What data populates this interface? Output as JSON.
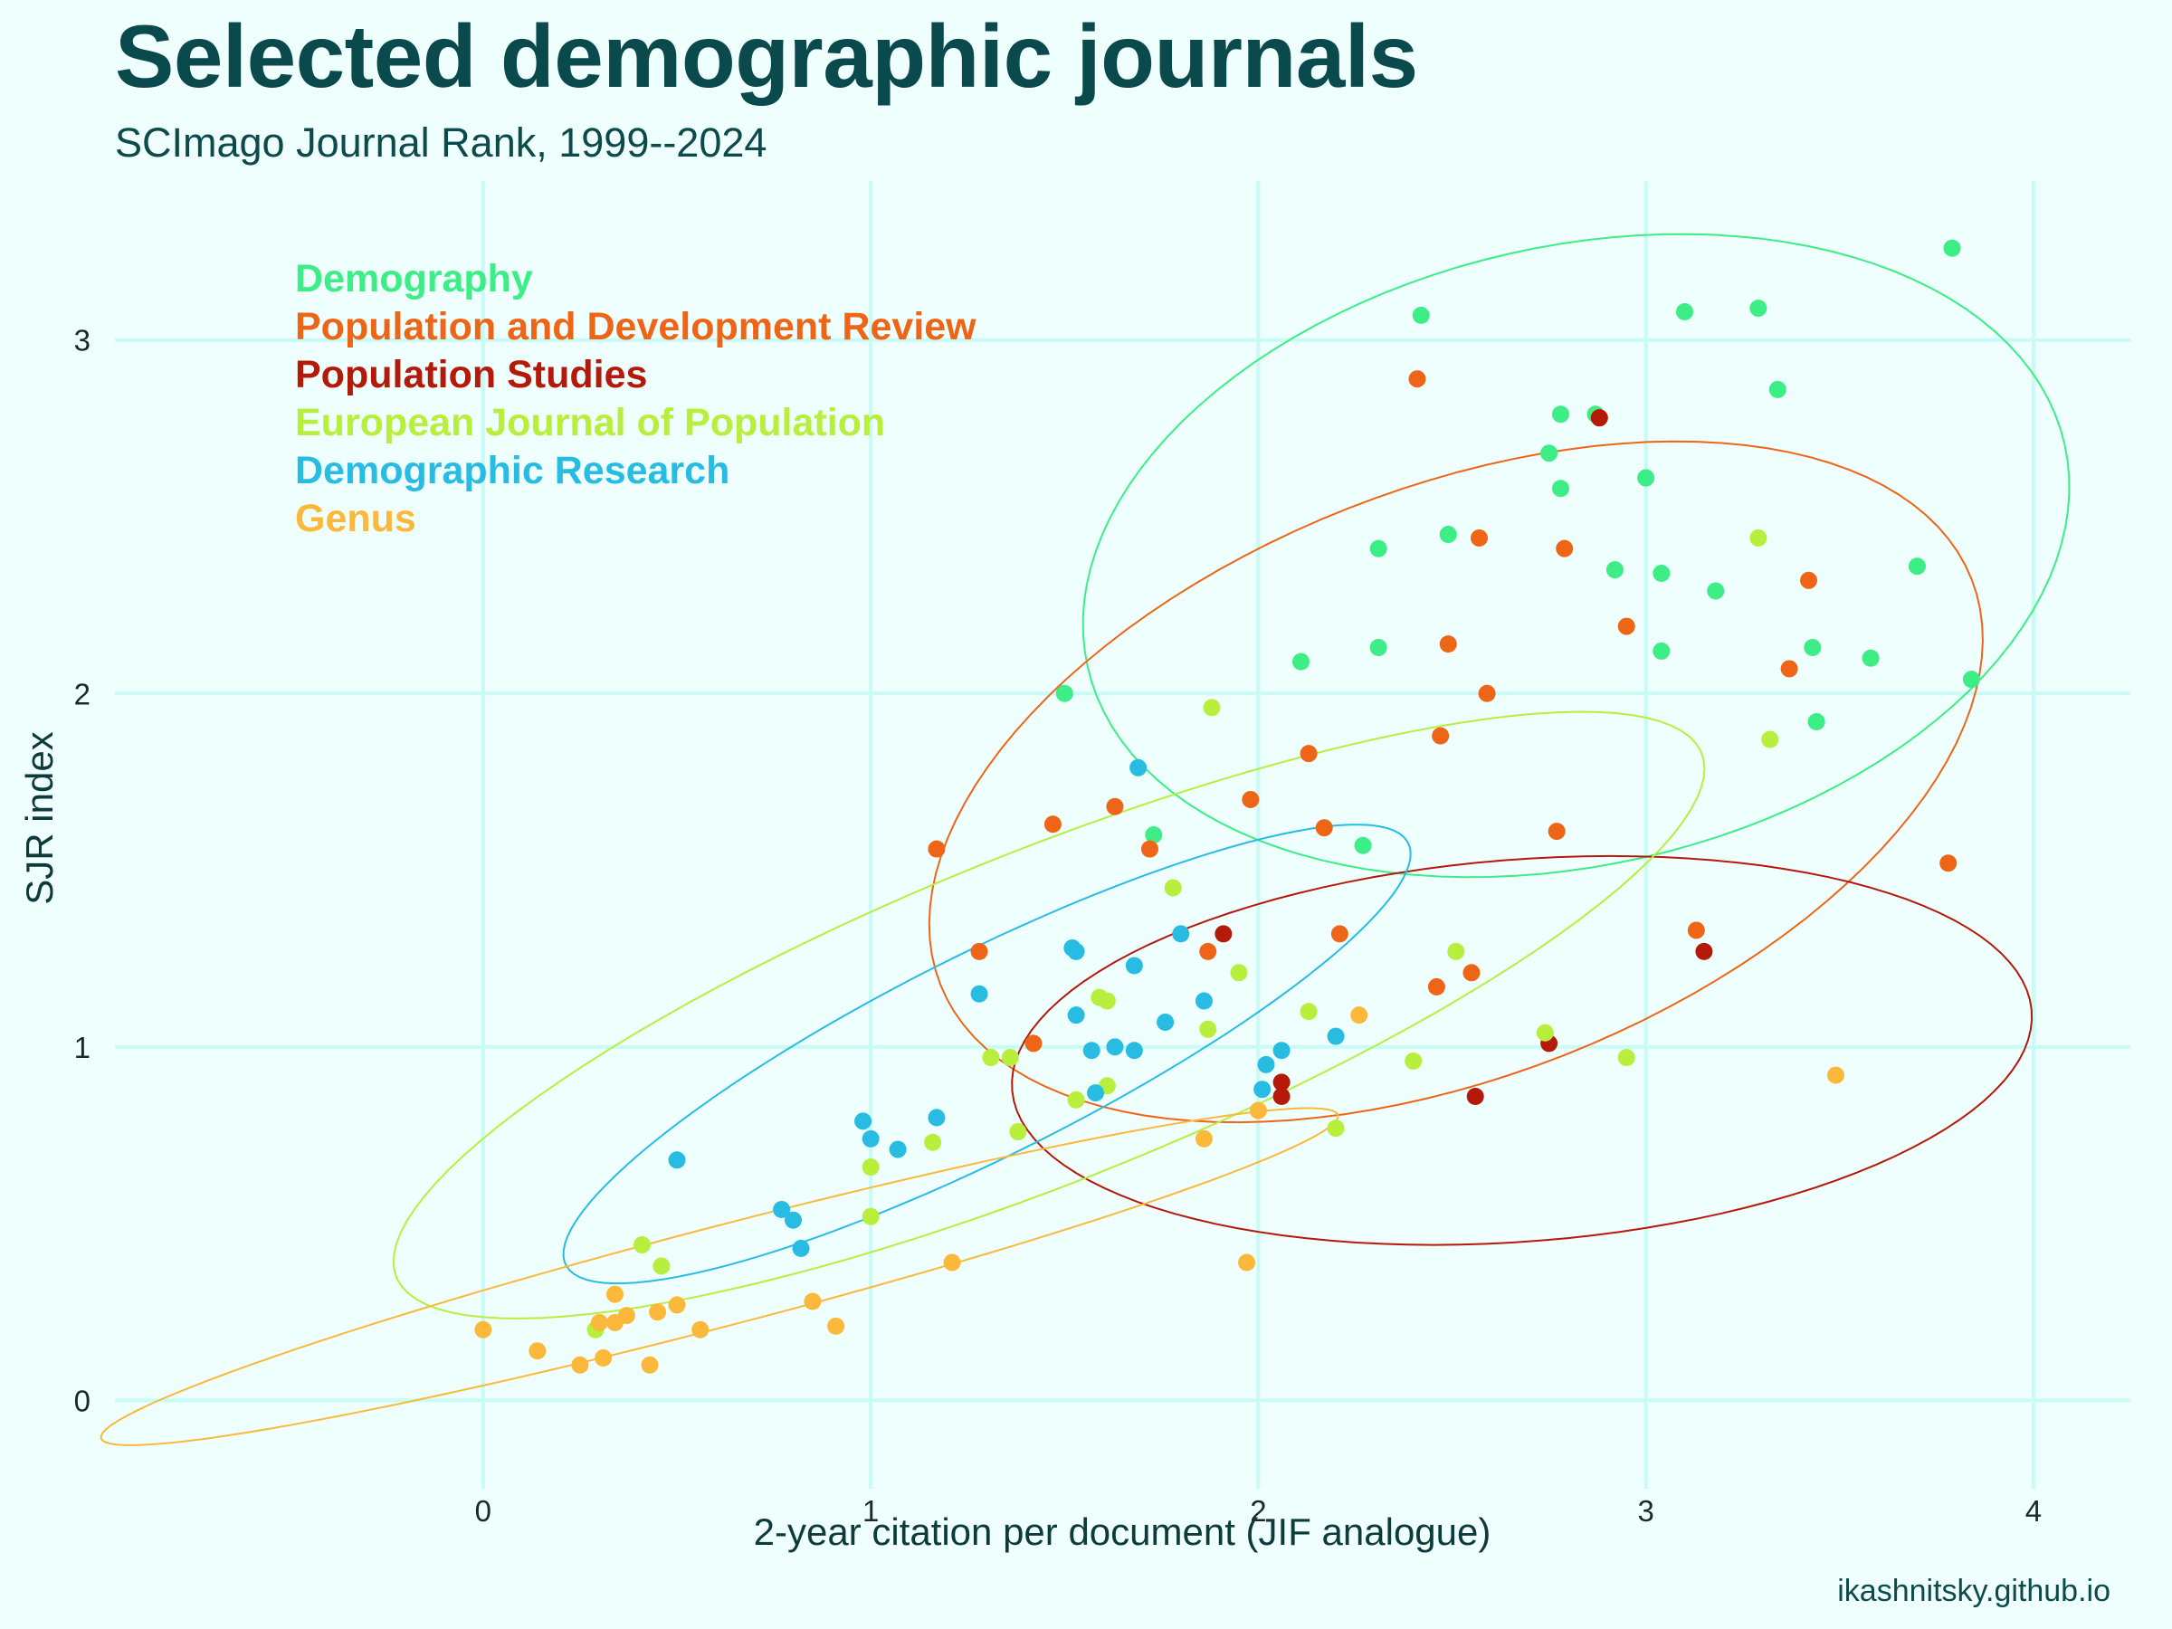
{
  "title": "Selected demographic journals",
  "subtitle": "SCImago Journal Rank, 1999--2024",
  "caption": "ikashnitsky.github.io",
  "chart_data": {
    "type": "scatter",
    "xlabel": "2-year citation per document (JIF analogue)",
    "ylabel": "SJR index",
    "xlim": [
      -0.95,
      4.25
    ],
    "ylim": [
      -0.25,
      3.45
    ],
    "xticks": [
      0,
      1,
      2,
      3,
      4
    ],
    "yticks": [
      0,
      1,
      2,
      3
    ],
    "grid": true,
    "legend_position": "top-left",
    "series": [
      {
        "name": "Demography",
        "color": "#3ded85",
        "ellipse": {
          "cx": 2.82,
          "cy": 2.39,
          "rx": 1.3,
          "ry": 0.87,
          "angle": 16
        },
        "points": [
          [
            1.5,
            2.0
          ],
          [
            1.73,
            1.6
          ],
          [
            2.11,
            2.09
          ],
          [
            2.27,
            1.57
          ],
          [
            2.31,
            2.41
          ],
          [
            2.31,
            2.13
          ],
          [
            2.42,
            3.07
          ],
          [
            2.49,
            2.45
          ],
          [
            2.75,
            2.68
          ],
          [
            2.78,
            2.79
          ],
          [
            2.78,
            2.58
          ],
          [
            2.87,
            2.79
          ],
          [
            2.92,
            2.35
          ],
          [
            3.0,
            2.61
          ],
          [
            3.04,
            2.34
          ],
          [
            3.04,
            2.12
          ],
          [
            3.1,
            3.08
          ],
          [
            3.18,
            2.29
          ],
          [
            3.29,
            3.09
          ],
          [
            3.34,
            2.86
          ],
          [
            3.43,
            2.13
          ],
          [
            3.44,
            1.92
          ],
          [
            3.58,
            2.1
          ],
          [
            3.7,
            2.36
          ],
          [
            3.79,
            3.26
          ],
          [
            3.84,
            2.04
          ]
        ]
      },
      {
        "name": "Population and Development Review",
        "color": "#ef6517",
        "ellipse": {
          "cx": 2.51,
          "cy": 1.75,
          "rx": 1.45,
          "ry": 0.82,
          "angle": 25
        },
        "points": [
          [
            1.17,
            1.56
          ],
          [
            1.28,
            1.27
          ],
          [
            1.42,
            1.01
          ],
          [
            1.47,
            1.63
          ],
          [
            1.63,
            1.68
          ],
          [
            1.72,
            1.56
          ],
          [
            1.87,
            1.27
          ],
          [
            1.98,
            1.7
          ],
          [
            2.13,
            1.83
          ],
          [
            2.17,
            1.62
          ],
          [
            2.21,
            1.32
          ],
          [
            2.41,
            2.89
          ],
          [
            2.46,
            1.17
          ],
          [
            2.47,
            1.88
          ],
          [
            2.49,
            2.14
          ],
          [
            2.55,
            1.21
          ],
          [
            2.57,
            2.44
          ],
          [
            2.59,
            2.0
          ],
          [
            2.77,
            1.61
          ],
          [
            2.79,
            2.41
          ],
          [
            2.88,
            2.78
          ],
          [
            2.95,
            2.19
          ],
          [
            3.13,
            1.33
          ],
          [
            3.37,
            2.07
          ],
          [
            3.42,
            2.32
          ],
          [
            3.78,
            1.52
          ]
        ]
      },
      {
        "name": "Population Studies",
        "color": "#b4190a",
        "ellipse": {
          "cx": 2.68,
          "cy": 0.99,
          "rx": 1.32,
          "ry": 0.54,
          "angle": 5
        },
        "points": [
          [
            1.91,
            1.32
          ],
          [
            2.06,
            0.9
          ],
          [
            2.06,
            0.86
          ],
          [
            2.56,
            0.86
          ],
          [
            2.75,
            1.01
          ],
          [
            2.88,
            2.78
          ],
          [
            3.15,
            1.27
          ]
        ]
      },
      {
        "name": "European Journal of Population",
        "color": "#b8ef3c",
        "ellipse": {
          "cx": 1.46,
          "cy": 1.09,
          "rx": 1.84,
          "ry": 0.46,
          "angle": 24
        },
        "points": [
          [
            0.29,
            0.2
          ],
          [
            0.41,
            0.44
          ],
          [
            0.46,
            0.38
          ],
          [
            1.0,
            0.66
          ],
          [
            1.0,
            0.52
          ],
          [
            1.16,
            0.73
          ],
          [
            1.31,
            0.97
          ],
          [
            1.36,
            0.97
          ],
          [
            1.38,
            0.76
          ],
          [
            1.53,
            0.85
          ],
          [
            1.59,
            1.14
          ],
          [
            1.61,
            0.89
          ],
          [
            1.61,
            1.13
          ],
          [
            1.78,
            1.45
          ],
          [
            1.87,
            1.05
          ],
          [
            1.88,
            1.96
          ],
          [
            1.95,
            1.21
          ],
          [
            2.13,
            1.1
          ],
          [
            2.2,
            0.77
          ],
          [
            2.4,
            0.96
          ],
          [
            2.51,
            1.27
          ],
          [
            2.74,
            1.04
          ],
          [
            2.95,
            0.97
          ],
          [
            3.29,
            2.44
          ],
          [
            3.32,
            1.87
          ]
        ]
      },
      {
        "name": "Demographic Research",
        "color": "#28bce3",
        "ellipse": {
          "cx": 1.3,
          "cy": 0.98,
          "rx": 1.24,
          "ry": 0.28,
          "angle": 29
        },
        "points": [
          [
            0.5,
            0.68
          ],
          [
            0.77,
            0.54
          ],
          [
            0.8,
            0.51
          ],
          [
            0.82,
            0.43
          ],
          [
            0.98,
            0.79
          ],
          [
            1.0,
            0.74
          ],
          [
            1.07,
            0.71
          ],
          [
            1.17,
            0.8
          ],
          [
            1.28,
            1.15
          ],
          [
            1.52,
            1.28
          ],
          [
            1.53,
            1.27
          ],
          [
            1.53,
            1.09
          ],
          [
            1.57,
            0.99
          ],
          [
            1.58,
            0.87
          ],
          [
            1.63,
            1.0
          ],
          [
            1.68,
            0.99
          ],
          [
            1.68,
            1.23
          ],
          [
            1.69,
            1.79
          ],
          [
            1.76,
            1.07
          ],
          [
            1.8,
            1.32
          ],
          [
            1.86,
            1.13
          ],
          [
            2.01,
            0.88
          ],
          [
            2.02,
            0.95
          ],
          [
            2.06,
            0.99
          ],
          [
            2.2,
            1.03
          ]
        ]
      },
      {
        "name": "Genus",
        "color": "#fbb83a",
        "ellipse": {
          "cx": 0.61,
          "cy": 0.35,
          "rx": 1.66,
          "ry": 0.14,
          "angle": 16
        },
        "points": [
          [
            0.0,
            0.2
          ],
          [
            0.14,
            0.14
          ],
          [
            0.25,
            0.1
          ],
          [
            0.3,
            0.22
          ],
          [
            0.31,
            0.12
          ],
          [
            0.34,
            0.3
          ],
          [
            0.34,
            0.22
          ],
          [
            0.37,
            0.24
          ],
          [
            0.43,
            0.1
          ],
          [
            0.45,
            0.25
          ],
          [
            0.5,
            0.27
          ],
          [
            0.56,
            0.2
          ],
          [
            0.85,
            0.28
          ],
          [
            0.91,
            0.21
          ],
          [
            1.21,
            0.39
          ],
          [
            1.86,
            0.74
          ],
          [
            1.97,
            0.39
          ],
          [
            2.0,
            0.82
          ],
          [
            2.26,
            1.09
          ],
          [
            3.49,
            0.92
          ]
        ]
      }
    ]
  }
}
